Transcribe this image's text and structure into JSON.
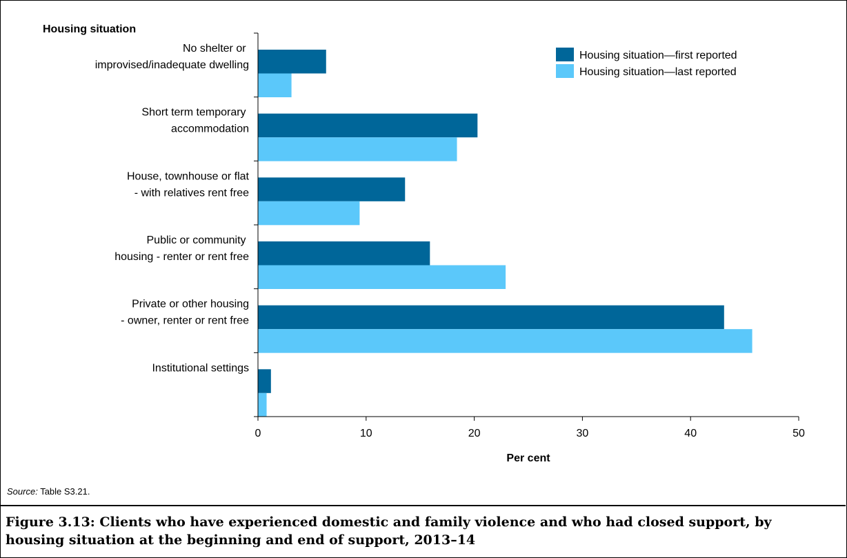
{
  "chart_data": {
    "type": "bar",
    "orientation": "horizontal",
    "title": "",
    "ylabel": "Housing situation",
    "xlabel": "Per cent",
    "xlim": [
      0,
      50
    ],
    "xticks": [
      0,
      10,
      20,
      30,
      40,
      50
    ],
    "grid": false,
    "legend_position": "top-right",
    "categories": [
      [
        "No shelter or ",
        "improvised/inadequate dwelling"
      ],
      [
        "Short term temporary ",
        "accommodation"
      ],
      [
        "House, townhouse or flat",
        "- with relatives rent free"
      ],
      [
        "Public or community ",
        "housing - renter or rent free"
      ],
      [
        "Private or other housing",
        "- owner, renter or rent free"
      ],
      [
        "Institutional settings"
      ]
    ],
    "series": [
      {
        "name": "Housing situation—first reported",
        "color": "#006699",
        "values": [
          6.3,
          20.3,
          13.6,
          15.9,
          43.1,
          1.2
        ]
      },
      {
        "name": "Housing situation—last reported",
        "color": "#5BC8FA",
        "values": [
          3.1,
          18.4,
          9.4,
          22.9,
          45.7,
          0.8
        ]
      }
    ]
  },
  "source": {
    "label": "Source:",
    "text": " Table S3.21."
  },
  "caption": "Figure 3.13: Clients who have experienced domestic and family violence and who had closed support, by housing situation at the beginning and end of support, 2013–14"
}
